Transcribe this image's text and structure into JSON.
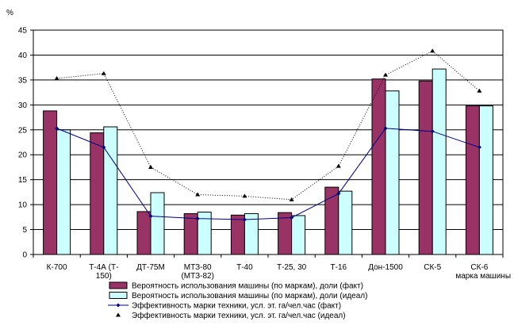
{
  "chart_data": {
    "type": "bar",
    "title": "",
    "ylabel": "%",
    "xlabel": "марка машины",
    "ylim": [
      0,
      45
    ],
    "yticks": [
      0,
      5,
      10,
      15,
      20,
      25,
      30,
      35,
      40,
      45
    ],
    "grid": true,
    "legend_position": "bottom",
    "categories": [
      [
        "К-700"
      ],
      [
        "Т-4А (Т-",
        "150)"
      ],
      [
        "ДТ-75М"
      ],
      [
        "МТЗ-80",
        "(МТЗ-82)"
      ],
      [
        "Т-40"
      ],
      [
        "Т-25, 30"
      ],
      [
        "Т-16"
      ],
      [
        "Дон-1500"
      ],
      [
        "СК-5"
      ],
      [
        "СК-6"
      ]
    ],
    "series": [
      {
        "name": "Вероятность использования машины (по маркам), доли (факт)",
        "kind": "bar",
        "color": "#993366",
        "values": [
          28.8,
          24.4,
          8.6,
          8.2,
          7.9,
          8.4,
          13.5,
          35.2,
          34.8,
          29.8
        ]
      },
      {
        "name": "Вероятность использования машины (по маркам), доли (идеал)",
        "kind": "bar",
        "color": "#ccffff",
        "values": [
          25.0,
          25.6,
          12.4,
          8.5,
          8.2,
          7.8,
          12.7,
          32.8,
          37.2,
          29.8
        ]
      },
      {
        "name": "Эффективность марки техники, усл. эт. га/чел.час (факт)",
        "kind": "line",
        "color": "#000080",
        "values": [
          25.3,
          21.5,
          7.7,
          7.2,
          7.0,
          7.4,
          12.2,
          25.3,
          24.7,
          21.5
        ]
      },
      {
        "name": "Эффективность марки техники, усл. эт. га/чел.час (идеал)",
        "kind": "dotted-line",
        "color": "#000000",
        "values": [
          35.3,
          36.3,
          17.5,
          12.0,
          11.7,
          11.0,
          17.7,
          36.0,
          40.8,
          32.8
        ]
      }
    ]
  }
}
